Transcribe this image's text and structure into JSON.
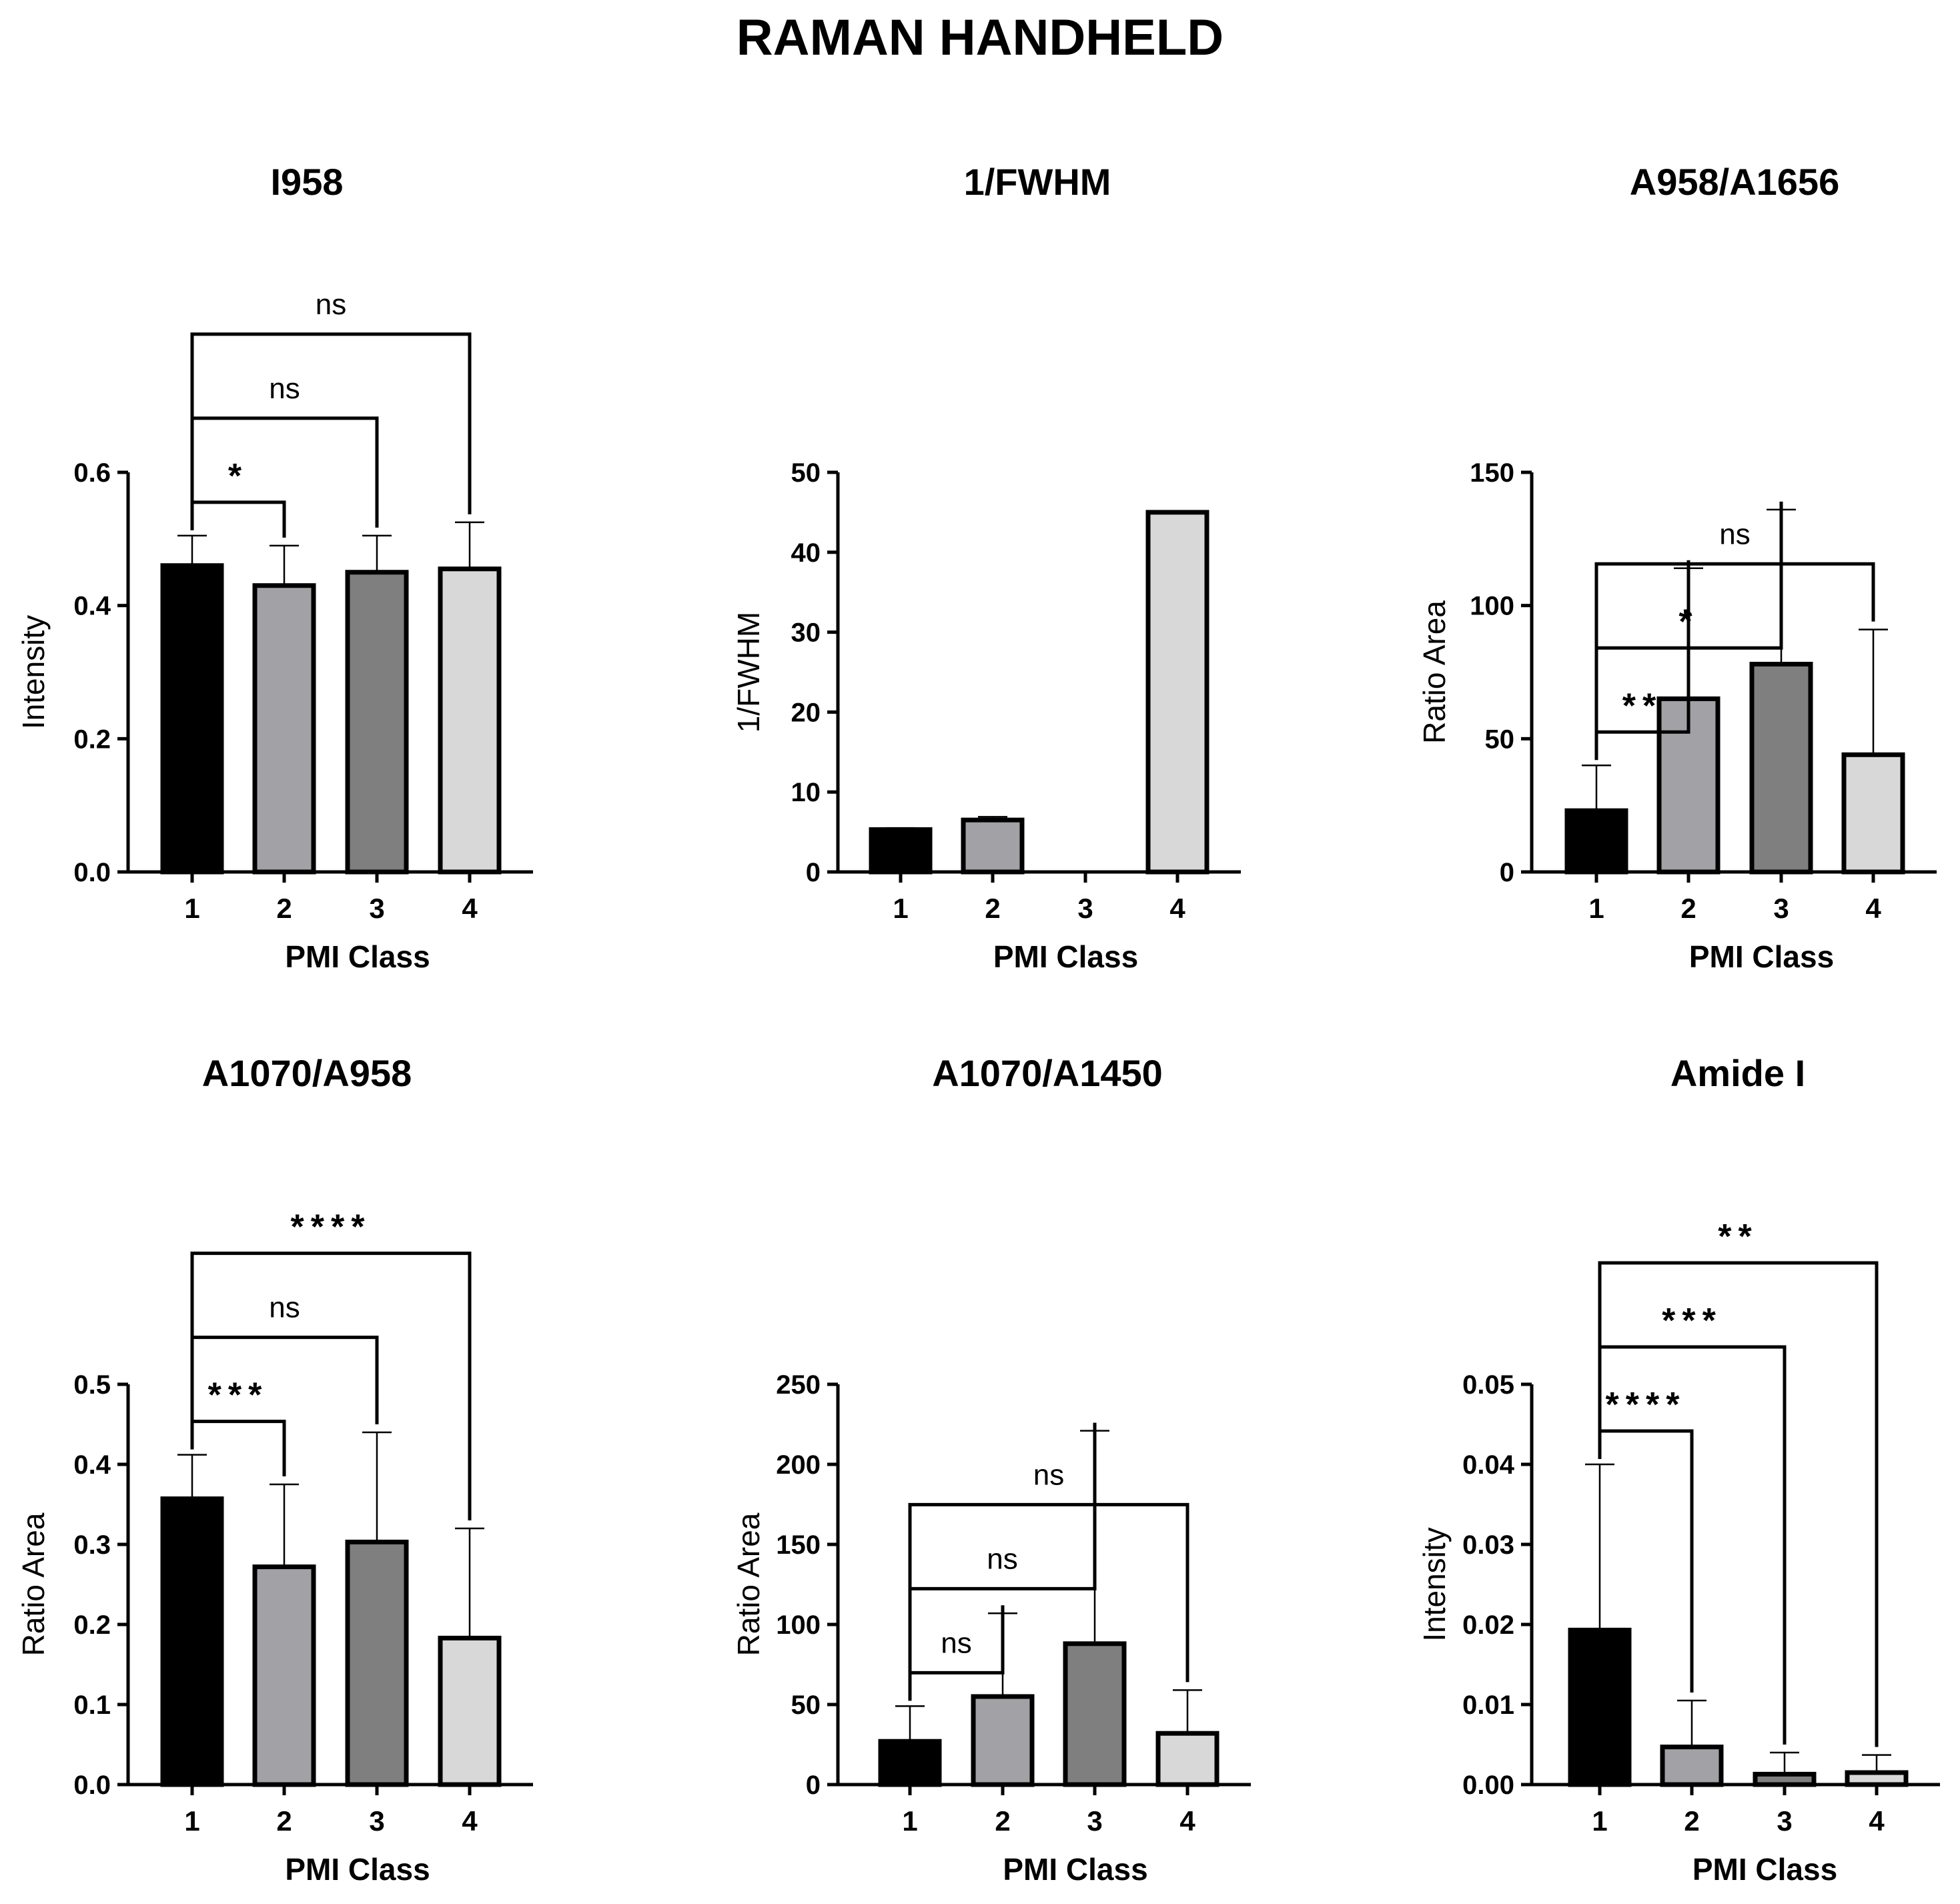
{
  "figure_title": "RAMAN HANDHELD",
  "colors": {
    "class_1": "#000000",
    "class_2": "#a1a1a6",
    "class_3": "#7f7f7f",
    "class_4": "#d8d8d8",
    "outline": "#000000"
  },
  "chart_data": [
    {
      "type": "bar",
      "title": "I958",
      "xlabel": "PMI Class",
      "ylabel": "Intensity",
      "categories": [
        "1",
        "2",
        "3",
        "4"
      ],
      "values": [
        0.46,
        0.43,
        0.45,
        0.455
      ],
      "errors": [
        0.045,
        0.06,
        0.055,
        0.07
      ],
      "ylim": [
        0,
        0.6
      ],
      "yticks": [
        0.0,
        0.2,
        0.4,
        0.6
      ],
      "ytick_labels": [
        "0.0",
        "0.2",
        "0.4",
        "0.6"
      ],
      "comparisons": [
        {
          "from": "1",
          "to": "2",
          "label": "*"
        },
        {
          "from": "1",
          "to": "3",
          "label": "ns"
        },
        {
          "from": "1",
          "to": "4",
          "label": "ns"
        }
      ]
    },
    {
      "type": "bar",
      "title": "1/FWHM",
      "xlabel": "PMI Class",
      "ylabel": "1/FWHM",
      "categories": [
        "1",
        "2",
        "3",
        "4"
      ],
      "values": [
        5.3,
        6.5,
        0,
        45
      ],
      "errors": [
        0.2,
        0.4,
        0,
        0
      ],
      "ylim": [
        0,
        50
      ],
      "yticks": [
        0,
        10,
        20,
        30,
        40,
        50
      ],
      "ytick_labels": [
        "0",
        "10",
        "20",
        "30",
        "40",
        "50"
      ],
      "comparisons": []
    },
    {
      "type": "bar",
      "title": "A958/A1656",
      "xlabel": "PMI Class",
      "ylabel": "Ratio Area",
      "categories": [
        "1",
        "2",
        "3",
        "4"
      ],
      "values": [
        23,
        65,
        78,
        44
      ],
      "errors": [
        17,
        49,
        58,
        47
      ],
      "ylim": [
        0,
        150
      ],
      "yticks": [
        0,
        50,
        100,
        150
      ],
      "ytick_labels": [
        "0",
        "50",
        "100",
        "150"
      ],
      "comparisons": [
        {
          "from": "1",
          "to": "2",
          "label": "**"
        },
        {
          "from": "1",
          "to": "3",
          "label": "*"
        },
        {
          "from": "1",
          "to": "4",
          "label": "ns"
        }
      ]
    },
    {
      "type": "bar",
      "title": "A1070/A958",
      "xlabel": "PMI Class",
      "ylabel": "Ratio Area",
      "categories": [
        "1",
        "2",
        "3",
        "4"
      ],
      "values": [
        0.357,
        0.272,
        0.303,
        0.183
      ],
      "errors": [
        0.055,
        0.103,
        0.137,
        0.137
      ],
      "ylim": [
        0,
        0.5
      ],
      "yticks": [
        0.0,
        0.1,
        0.2,
        0.3,
        0.4,
        0.5
      ],
      "ytick_labels": [
        "0.0",
        "0.1",
        "0.2",
        "0.3",
        "0.4",
        "0.5"
      ],
      "comparisons": [
        {
          "from": "1",
          "to": "2",
          "label": "***"
        },
        {
          "from": "1",
          "to": "3",
          "label": "ns"
        },
        {
          "from": "1",
          "to": "4",
          "label": "****"
        }
      ]
    },
    {
      "type": "bar",
      "title": "A1070/A1450",
      "xlabel": "PMI Class",
      "ylabel": "Ratio Area",
      "categories": [
        "1",
        "2",
        "3",
        "4"
      ],
      "values": [
        27,
        55,
        88,
        32
      ],
      "errors": [
        22,
        52,
        133,
        27
      ],
      "ylim": [
        0,
        250
      ],
      "yticks": [
        0,
        50,
        100,
        150,
        200,
        250
      ],
      "ytick_labels": [
        "0",
        "50",
        "100",
        "150",
        "200",
        "250"
      ],
      "comparisons": [
        {
          "from": "1",
          "to": "2",
          "label": "ns"
        },
        {
          "from": "1",
          "to": "3",
          "label": "ns"
        },
        {
          "from": "1",
          "to": "4",
          "label": "ns"
        }
      ]
    },
    {
      "type": "bar",
      "title": "Amide I",
      "xlabel": "PMI Class",
      "ylabel": "Intensity",
      "categories": [
        "1",
        "2",
        "3",
        "4"
      ],
      "values": [
        0.0193,
        0.0047,
        0.0013,
        0.0015
      ],
      "errors": [
        0.0207,
        0.0058,
        0.0027,
        0.0022
      ],
      "ylim": [
        0,
        0.05
      ],
      "yticks": [
        0.0,
        0.01,
        0.02,
        0.03,
        0.04,
        0.05
      ],
      "ytick_labels": [
        "0.00",
        "0.01",
        "0.02",
        "0.03",
        "0.04",
        "0.05"
      ],
      "comparisons": [
        {
          "from": "1",
          "to": "2",
          "label": "****"
        },
        {
          "from": "1",
          "to": "3",
          "label": "***"
        },
        {
          "from": "1",
          "to": "4",
          "label": "**"
        }
      ]
    }
  ]
}
